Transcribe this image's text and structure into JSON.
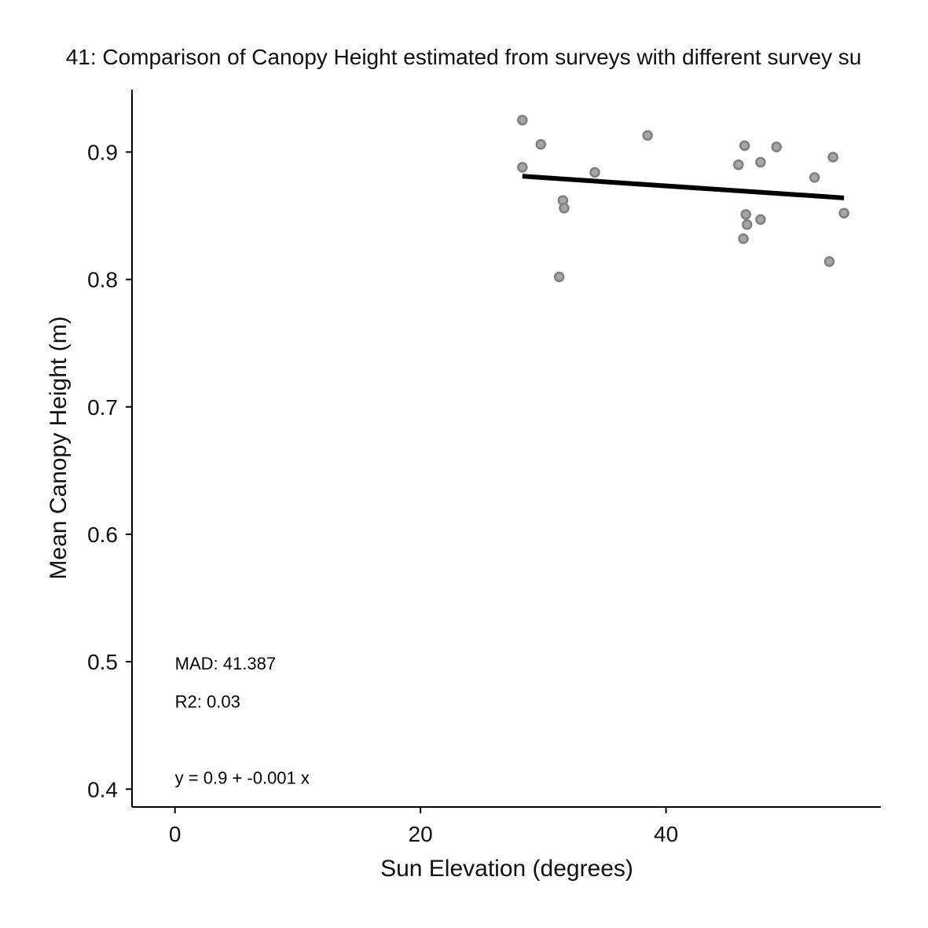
{
  "chart_data": {
    "type": "scatter",
    "title": "41: Comparison of Canopy Height estimated from surveys with different survey su",
    "xlabel": "Sun Elevation (degrees)",
    "ylabel": "Mean Canopy Height (m)",
    "xlim": [
      -3.5,
      57.5
    ],
    "ylim": [
      0.386,
      0.949
    ],
    "xticks": [
      0,
      20,
      40
    ],
    "xtick_labels": [
      "0",
      "20",
      "40"
    ],
    "yticks": [
      0.4,
      0.5,
      0.6,
      0.7,
      0.8,
      0.9
    ],
    "ytick_labels": [
      "0.4",
      "0.5",
      "0.6",
      "0.7",
      "0.8",
      "0.9"
    ],
    "grid": false,
    "point_color": "#a6a6a6",
    "point_edge_color": "#7f7f7f",
    "line_color": "#000000",
    "points": [
      {
        "x": 28.3,
        "y": 0.925
      },
      {
        "x": 28.3,
        "y": 0.888
      },
      {
        "x": 29.8,
        "y": 0.906
      },
      {
        "x": 31.3,
        "y": 0.802
      },
      {
        "x": 31.6,
        "y": 0.862
      },
      {
        "x": 31.7,
        "y": 0.856
      },
      {
        "x": 34.2,
        "y": 0.884
      },
      {
        "x": 38.5,
        "y": 0.913
      },
      {
        "x": 45.9,
        "y": 0.89
      },
      {
        "x": 46.4,
        "y": 0.905
      },
      {
        "x": 46.3,
        "y": 0.832
      },
      {
        "x": 46.5,
        "y": 0.851
      },
      {
        "x": 46.6,
        "y": 0.843
      },
      {
        "x": 47.7,
        "y": 0.892
      },
      {
        "x": 47.7,
        "y": 0.847
      },
      {
        "x": 49.0,
        "y": 0.904
      },
      {
        "x": 52.1,
        "y": 0.88
      },
      {
        "x": 53.3,
        "y": 0.814
      },
      {
        "x": 53.6,
        "y": 0.896
      },
      {
        "x": 54.5,
        "y": 0.852
      }
    ],
    "fit_line": {
      "x": [
        28.3,
        54.5
      ],
      "y": [
        0.881,
        0.864
      ]
    },
    "annotations": [
      {
        "text": "MAD: 41.387",
        "x": 0.0,
        "y": 0.499
      },
      {
        "text": "R2: 0.03",
        "x": 0.0,
        "y": 0.469
      },
      {
        "text": "y =  0.9 + -0.001 x",
        "x": 0.0,
        "y": 0.409
      }
    ]
  }
}
